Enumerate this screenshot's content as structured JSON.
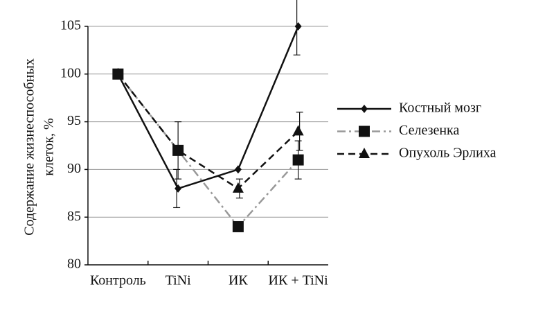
{
  "chart_data": {
    "type": "line",
    "y_label": [
      "Содержание жизнеспособных",
      "клеток, %"
    ],
    "categories": [
      "Контроль",
      "TiNi",
      "ИК",
      "ИК + TiNi"
    ],
    "ylim": [
      80,
      105
    ],
    "yticks": [
      80,
      85,
      90,
      95,
      100,
      105
    ],
    "grid": true,
    "legend": "right",
    "series": [
      {
        "name": "Костный мозг",
        "color": "#111111",
        "dash": "solid",
        "marker": "diamond",
        "values": [
          100,
          88,
          90,
          105
        ],
        "errors": [
          null,
          2,
          null,
          3
        ]
      },
      {
        "name": "Селезенка",
        "color": "#999999",
        "dash": "dashdot",
        "marker": "square",
        "values": [
          100,
          92,
          84,
          91
        ],
        "errors": [
          null,
          3,
          null,
          2
        ]
      },
      {
        "name": "Опухоль Эрлиха",
        "color": "#111111",
        "dash": "dashed",
        "marker": "triangle",
        "values": [
          100,
          92,
          88,
          94
        ],
        "errors": [
          null,
          null,
          1,
          2
        ]
      }
    ]
  }
}
